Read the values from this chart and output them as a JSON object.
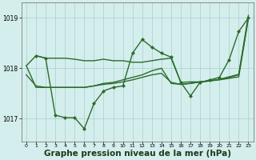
{
  "bg_color": "#d4eeed",
  "grid_color": "#aed4d0",
  "line_color": "#2d6b2d",
  "xlabel": "Graphe pression niveau de la mer (hPa)",
  "xlabel_fontsize": 7.5,
  "ylim": [
    1016.55,
    1019.3
  ],
  "xlim": [
    -0.5,
    23.5
  ],
  "yticks": [
    1017,
    1018,
    1019
  ],
  "xticks": [
    0,
    1,
    2,
    3,
    4,
    5,
    6,
    7,
    8,
    9,
    10,
    11,
    12,
    13,
    14,
    15,
    16,
    17,
    18,
    19,
    20,
    21,
    22,
    23
  ],
  "series": [
    {
      "x": [
        0,
        1,
        2,
        3,
        4,
        5,
        6,
        7,
        8,
        9,
        10,
        11,
        12,
        13,
        14,
        15,
        16,
        17,
        18,
        19,
        20,
        21,
        22,
        23
      ],
      "y": [
        1018.05,
        1018.25,
        1018.2,
        1018.2,
        1018.2,
        1018.18,
        1018.15,
        1018.15,
        1018.18,
        1018.15,
        1018.15,
        1018.12,
        1018.12,
        1018.15,
        1018.18,
        1018.2,
        1017.72,
        1017.73,
        1017.73,
        1017.75,
        1017.77,
        1017.8,
        1017.83,
        1019.0
      ],
      "marker": false,
      "linewidth": 1.0
    },
    {
      "x": [
        1,
        2,
        3,
        4,
        5,
        6,
        7,
        8,
        9,
        10,
        11,
        12,
        13,
        14,
        15,
        16,
        17,
        18,
        19,
        20,
        21,
        22,
        23
      ],
      "y": [
        1018.25,
        1018.2,
        1017.07,
        1017.02,
        1017.02,
        1016.8,
        1017.3,
        1017.55,
        1017.62,
        1017.65,
        1018.3,
        1018.57,
        1018.42,
        1018.3,
        1018.22,
        1017.72,
        1017.45,
        1017.72,
        1017.77,
        1017.82,
        1018.17,
        1018.73,
        1019.0
      ],
      "marker": true,
      "linewidth": 1.0
    },
    {
      "x": [
        0,
        1,
        2,
        3,
        4,
        5,
        6,
        7,
        8,
        9,
        10,
        11,
        12,
        13,
        14,
        15,
        16,
        17,
        18,
        19,
        20,
        21,
        22,
        23
      ],
      "y": [
        1017.87,
        1017.65,
        1017.62,
        1017.62,
        1017.62,
        1017.62,
        1017.62,
        1017.65,
        1017.68,
        1017.7,
        1017.73,
        1017.77,
        1017.82,
        1017.87,
        1017.9,
        1017.72,
        1017.68,
        1017.7,
        1017.73,
        1017.75,
        1017.78,
        1017.82,
        1017.87,
        1019.0
      ],
      "marker": false,
      "linewidth": 1.0
    },
    {
      "x": [
        0,
        1,
        2,
        3,
        4,
        5,
        6,
        7,
        8,
        9,
        10,
        11,
        12,
        13,
        14,
        15,
        16,
        17,
        18,
        19,
        20,
        21,
        22,
        23
      ],
      "y": [
        1018.05,
        1017.62,
        1017.62,
        1017.62,
        1017.62,
        1017.62,
        1017.62,
        1017.65,
        1017.7,
        1017.72,
        1017.77,
        1017.82,
        1017.87,
        1017.95,
        1018.0,
        1017.7,
        1017.68,
        1017.7,
        1017.73,
        1017.75,
        1017.78,
        1017.83,
        1017.88,
        1019.05
      ],
      "marker": false,
      "linewidth": 1.0
    }
  ]
}
